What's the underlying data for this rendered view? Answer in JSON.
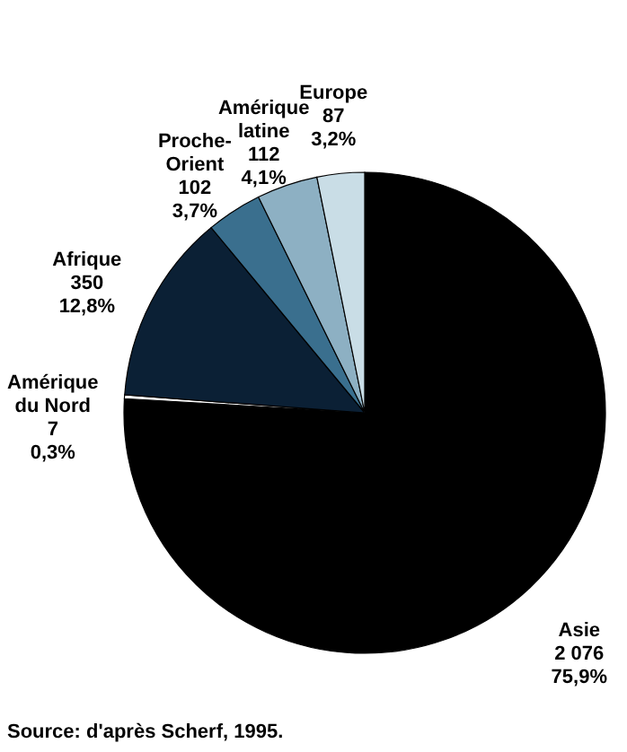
{
  "chart_data": {
    "type": "pie",
    "categories": [
      "Asie",
      "Amérique\ndu Nord",
      "Afrique",
      "Proche-\nOrient",
      "Amérique\nlatine",
      "Europe"
    ],
    "values": [
      2076,
      7,
      350,
      102,
      112,
      87
    ],
    "colors": [
      "#000000",
      "#ffffff",
      "#0b2035",
      "#3a6f8e",
      "#8db0c3",
      "#c9dde6"
    ],
    "value_labels": [
      "2 076\n75,9%",
      "7\n0,3%",
      "350\n12,8%",
      "102\n3,7%",
      "112\n4,1%",
      "87\n3,2%"
    ],
    "annotations": [
      "Source: d'après Scherf, 1995."
    ]
  }
}
